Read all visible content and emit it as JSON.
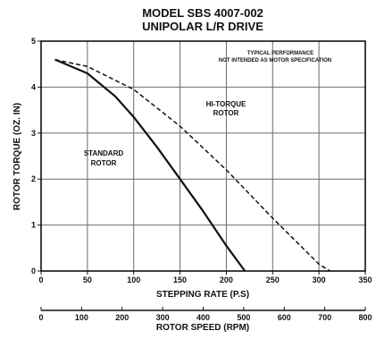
{
  "chart_data": {
    "type": "line",
    "title": "MODEL SBS 4007-002",
    "subtitle": "UNIPOLAR L/R DRIVE",
    "note_line1": "TYPICAL PERFORMANCE",
    "note_line2": "NOT INTENDED AS MOTOR SPECIFICATION",
    "xlabel": "STEPPING RATE (P.S)",
    "ylabel": "ROTOR TORQUE (OZ. IN)",
    "x2label": "ROTOR SPEED (RPM)",
    "xlim": [
      0,
      350
    ],
    "ylim": [
      0,
      5
    ],
    "x2lim": [
      0,
      800
    ],
    "xticks": [
      0,
      50,
      100,
      150,
      200,
      250,
      300,
      350
    ],
    "yticks": [
      0,
      1,
      2,
      3,
      4,
      5
    ],
    "x2ticks": [
      0,
      100,
      200,
      300,
      400,
      500,
      600,
      700,
      800
    ],
    "grid": true,
    "series": [
      {
        "name": "STANDARD ROTOR",
        "label_line1": "STANDARD",
        "label_line2": "ROTOR",
        "style": "solid",
        "x": [
          15,
          50,
          80,
          100,
          125,
          150,
          175,
          200,
          220
        ],
        "y": [
          4.6,
          4.3,
          3.8,
          3.35,
          2.7,
          2.0,
          1.3,
          0.55,
          0.0
        ]
      },
      {
        "name": "HI-TORQUE ROTOR",
        "label_line1": "HI-TORQUE",
        "label_line2": "ROTOR",
        "style": "dashed",
        "x": [
          15,
          50,
          100,
          150,
          200,
          250,
          300,
          312
        ],
        "y": [
          4.6,
          4.45,
          3.95,
          3.15,
          2.2,
          1.15,
          0.15,
          0.0
        ]
      }
    ]
  }
}
